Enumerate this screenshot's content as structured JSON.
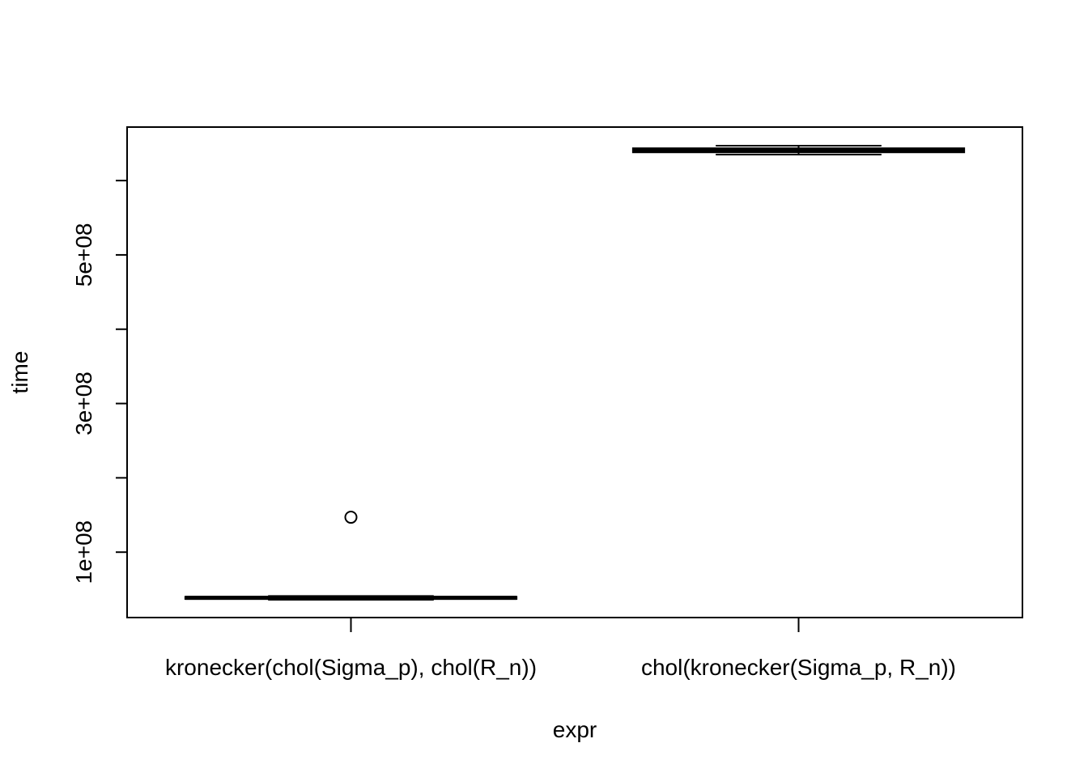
{
  "chart_data": {
    "type": "boxplot",
    "xlabel": "expr",
    "ylabel": "time",
    "ylim": [
      12000000,
      672000000
    ],
    "yticks": [
      {
        "value": 100000000,
        "label": "1e+08"
      },
      {
        "value": 200000000,
        "label": ""
      },
      {
        "value": 300000000,
        "label": "3e+08"
      },
      {
        "value": 400000000,
        "label": ""
      },
      {
        "value": 500000000,
        "label": "5e+08"
      },
      {
        "value": 600000000,
        "label": ""
      }
    ],
    "categories": [
      "kronecker(chol(Sigma_p), chol(R_n))",
      "chol(kronecker(Sigma_p, R_n))"
    ],
    "boxes": [
      {
        "whisker_low": 36000000,
        "q1": 37000000,
        "median": 38500000,
        "q3": 40000000,
        "whisker_high": 41000000,
        "outliers": [
          147000000
        ]
      },
      {
        "whisker_low": 635000000,
        "q1": 638000000,
        "median": 641000000,
        "q3": 643500000,
        "whisker_high": 647000000,
        "outliers": []
      }
    ],
    "grid": false,
    "legend": "none"
  }
}
